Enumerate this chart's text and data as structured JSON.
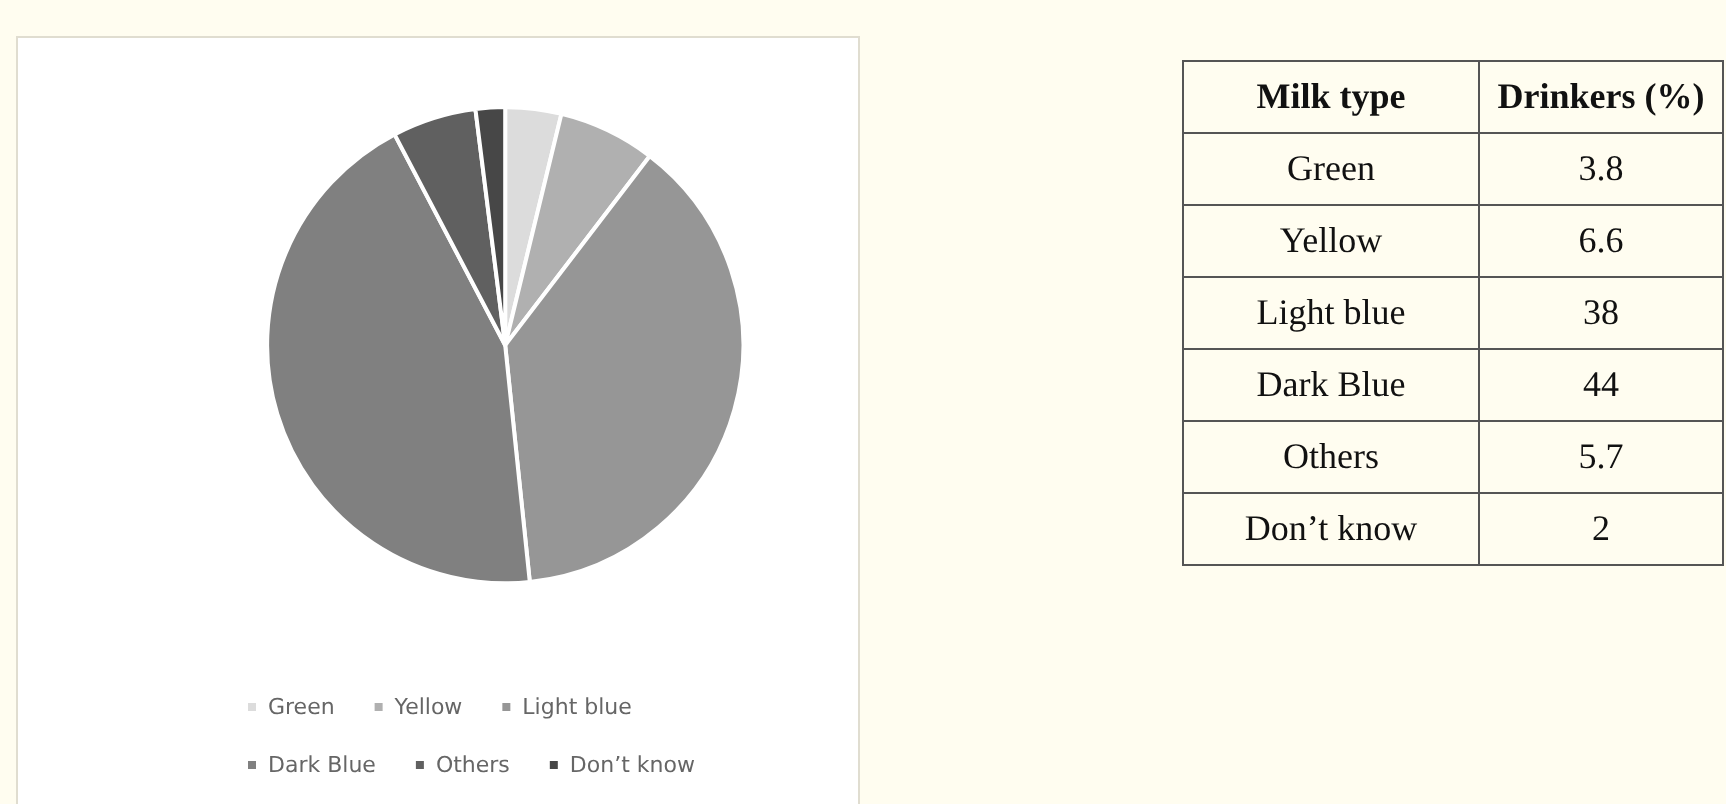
{
  "chart_data": [
    {
      "type": "pie",
      "categories": [
        "Green",
        "Yellow",
        "Light blue",
        "Dark Blue",
        "Others",
        "Don’t know"
      ],
      "values": [
        3.8,
        6.6,
        38,
        44,
        5.7,
        2
      ],
      "colors": [
        "#dcdcdc",
        "#b0b0b0",
        "#969696",
        "#808080",
        "#606060",
        "#474747"
      ],
      "legend": "bottom"
    },
    {
      "type": "other",
      "annotations": [
        "Milk type",
        "Drinkers (%)",
        "Green",
        "3.8",
        "Yellow",
        "6.6",
        "Light blue",
        "38",
        "Dark Blue",
        "44",
        "Others",
        "5.7",
        "Don’t know",
        "2"
      ]
    }
  ]
}
